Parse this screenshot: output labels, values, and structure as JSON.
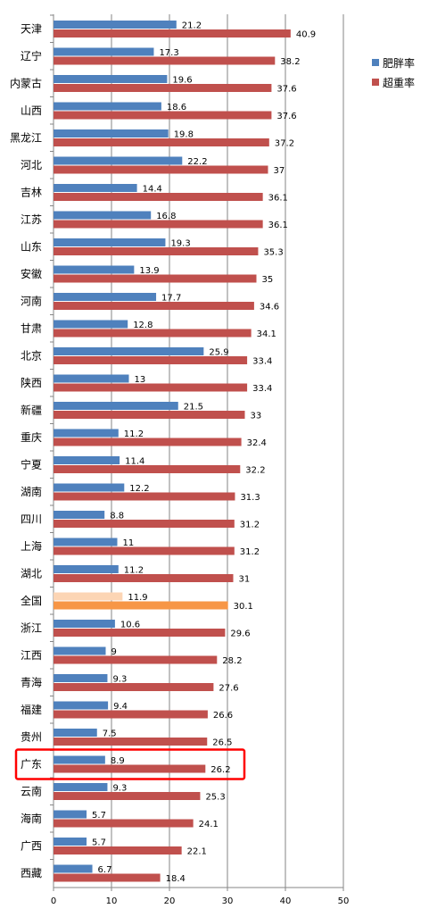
{
  "chart_data": {
    "type": "bar",
    "orientation": "horizontal",
    "categories": [
      "天津",
      "辽宁",
      "内蒙古",
      "山西",
      "黑龙江",
      "河北",
      "吉林",
      "江苏",
      "山东",
      "安徽",
      "河南",
      "甘肃",
      "北京",
      "陕西",
      "新疆",
      "重庆",
      "宁夏",
      "湖南",
      "四川",
      "上海",
      "湖北",
      "全国",
      "浙江",
      "江西",
      "青海",
      "福建",
      "贵州",
      "广东",
      "云南",
      "海南",
      "广西",
      "西藏"
    ],
    "series": [
      {
        "name": "肥胖率",
        "color": "#4f81bd",
        "values": [
          21.2,
          17.3,
          19.6,
          18.6,
          19.8,
          22.2,
          14.4,
          16.8,
          19.3,
          13.9,
          17.7,
          12.8,
          25.9,
          13,
          21.5,
          11.2,
          11.4,
          12.2,
          8.8,
          11,
          11.2,
          11.9,
          10.6,
          9,
          9.3,
          9.4,
          7.5,
          8.9,
          9.3,
          5.7,
          5.7,
          6.7
        ]
      },
      {
        "name": "超重率",
        "color": "#c0504d",
        "values": [
          40.9,
          38.2,
          37.6,
          37.6,
          37.2,
          37,
          36.1,
          36.1,
          35.3,
          35,
          34.6,
          34.1,
          33.4,
          33.4,
          33,
          32.4,
          32.2,
          31.3,
          31.2,
          31.2,
          31,
          30.1,
          29.6,
          28.2,
          27.6,
          26.6,
          26.5,
          26.2,
          25.3,
          24.1,
          22.1,
          18.4
        ]
      }
    ],
    "highlight": {
      "category": "全国",
      "colors": {
        "肥胖率": "#fcd5b4",
        "超重率": "#f79646"
      }
    },
    "boxed_category": "广东",
    "box_color": "#ff0000",
    "xlim": [
      0,
      50
    ],
    "x_ticks": [
      0,
      10,
      20,
      30,
      40,
      50
    ],
    "grid": true,
    "legend_position": "right"
  }
}
